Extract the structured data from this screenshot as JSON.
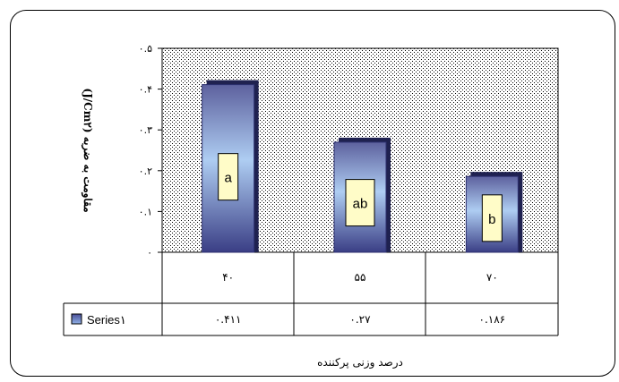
{
  "chart_data": {
    "type": "bar",
    "title": "",
    "ylabel": "مقاومت به ضربه (J/Cm۲)",
    "xlabel": "درصد وزنی پرکننده",
    "categories": [
      "۴۰",
      "۵۵",
      "۷۰"
    ],
    "series": [
      {
        "name": "Series۱",
        "values": [
          0.411,
          0.27,
          0.186
        ],
        "value_labels": [
          "۰.۴۱۱",
          "۰.۲۷",
          "۰.۱۸۶"
        ]
      }
    ],
    "significance_letters": [
      "a",
      "ab",
      "b"
    ],
    "ylim": [
      0,
      0.5
    ],
    "yticks": [
      {
        "value": 0,
        "label": "۰"
      },
      {
        "value": 0.1,
        "label": "۰.۱"
      },
      {
        "value": 0.2,
        "label": "۰.۲"
      },
      {
        "value": 0.3,
        "label": "۰.۳"
      },
      {
        "value": 0.4,
        "label": "۰.۴"
      },
      {
        "value": 0.5,
        "label": "۰.۵"
      }
    ],
    "grid": false,
    "data_table": true,
    "legend": "data-table-left",
    "colors": {
      "bar_top": "#6b6fa8",
      "bar_mid": "#a9c7ee",
      "bar_bottom": "#3b3f86",
      "letter_box": "#fffcc8",
      "plot_bg_pattern": "#000000"
    }
  }
}
